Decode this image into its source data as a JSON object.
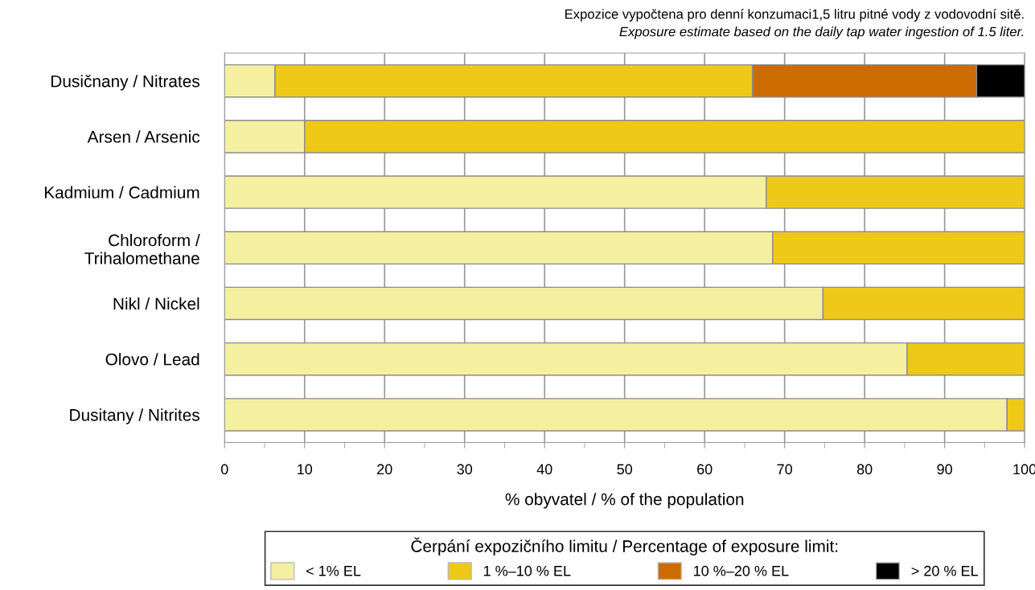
{
  "chart_data": {
    "type": "bar",
    "orientation": "horizontal",
    "stacked": true,
    "categories": [
      "Dusičnany / Nitrates",
      "Arsen / Arsenic",
      "Kadmium / Cadmium",
      "Chloroform /\nTrihalomethane",
      "Nikl / Nickel",
      "Olovo / Lead",
      "Dusitany / Nitrites"
    ],
    "series": [
      {
        "name": "< 1% EL",
        "color": "#f5f0a0",
        "values": [
          6.3,
          10,
          67.7,
          68.5,
          74.8,
          85.3,
          97.8
        ]
      },
      {
        "name": "1 %–10 % EL",
        "color": "#eec918",
        "values": [
          59.7,
          90,
          32.3,
          31.5,
          25.2,
          14.7,
          2.2
        ]
      },
      {
        "name": "10 %–20 % EL",
        "color": "#cc6b00",
        "values": [
          28.0,
          null,
          null,
          null,
          null,
          null,
          null
        ]
      },
      {
        "name": "> 20 % EL",
        "color": "#000000",
        "values": [
          6.0,
          null,
          null,
          null,
          null,
          null,
          null
        ]
      }
    ],
    "xlim": [
      0,
      100
    ],
    "xticks": [
      0,
      10,
      20,
      30,
      40,
      50,
      60,
      70,
      80,
      90,
      100
    ],
    "xlabel": "% obyvatel / % of the population",
    "legend_title": "Čerpání expozičního limitu / Percentage of exposure limit:",
    "legend": "bottom",
    "grid": "x",
    "annotations": [
      "Expozice vypočtena pro denní konzumaci1,5 litru pitné vody z vodovodní sitě.",
      "Exposure estimate based on the daily tap water ingestion of 1.5 liter."
    ]
  }
}
